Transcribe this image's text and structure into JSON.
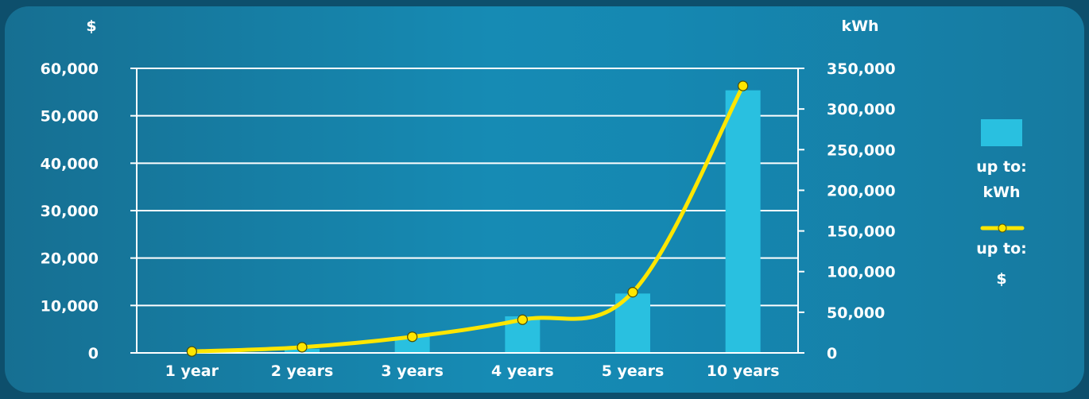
{
  "colors": {
    "background": "#1588b2",
    "bar": "#29c0e0",
    "line": "#ffe600",
    "grid": "#ffffff",
    "text": "#ffffff"
  },
  "chart_data": {
    "type": "bar",
    "title": "",
    "categories": [
      "1 year",
      "2 years",
      "3 years",
      "4 years",
      "5 years",
      "10 years"
    ],
    "left_axis": {
      "label": "$",
      "range": [
        0,
        60000
      ],
      "ticks": [
        "0",
        "10,000",
        "20,000",
        "30,000",
        "40,000",
        "50,000",
        "60,000"
      ]
    },
    "right_axis": {
      "label": "kWh",
      "range": [
        0,
        350000
      ],
      "ticks": [
        "0",
        "50,000",
        "100,000",
        "150,000",
        "200,000",
        "250,000",
        "300,000",
        "350,000"
      ]
    },
    "grid": true,
    "legend_position": "right",
    "series": [
      {
        "name": "up to: kWh",
        "type": "bar",
        "axis": "right",
        "values": [
          500,
          5000,
          20000,
          45000,
          73000,
          323000
        ]
      },
      {
        "name": "up to: $",
        "type": "line",
        "axis": "left",
        "values": [
          300,
          1200,
          3400,
          7000,
          12800,
          56300
        ]
      }
    ],
    "legend": [
      {
        "label_line1": "up to:",
        "label_line2": "kWh"
      },
      {
        "label_line1": "up to:",
        "label_line2": "$"
      }
    ]
  }
}
